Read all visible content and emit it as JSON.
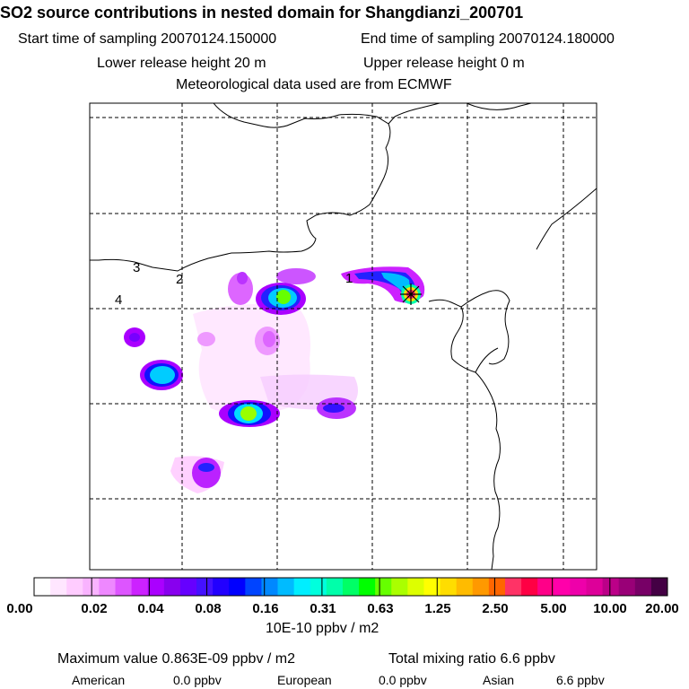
{
  "header": {
    "title": "SO2 source contributions in nested domain for Shangdianzi_200701",
    "start_label": "Start time of sampling 20070124.150000",
    "end_label": "End time of sampling 20070124.180000",
    "lower_label": "Lower release height   20 m",
    "upper_label": "Upper release height    0 m",
    "met_label": "Meteorological data used are from ECMWF"
  },
  "map": {
    "region_labels": [
      "1",
      "2",
      "3",
      "4"
    ],
    "source_marker": "asterisk"
  },
  "colorbar": {
    "colors": [
      "#ffffff",
      "#ffe6ff",
      "#ffccff",
      "#f9b3ff",
      "#ee88ff",
      "#dd55ff",
      "#cc22ff",
      "#aa00ff",
      "#8800ee",
      "#6600ff",
      "#4411ff",
      "#2200ff",
      "#0000ff",
      "#0044ff",
      "#0088ff",
      "#00bbff",
      "#00eeff",
      "#00ffdd",
      "#00ffaa",
      "#00ff66",
      "#00ff00",
      "#66ff00",
      "#aaff00",
      "#ddff00",
      "#ffff00",
      "#ffdd00",
      "#ffbb00",
      "#ff9900",
      "#ff6600",
      "#ff3366",
      "#ff0044",
      "#ff0088",
      "#ff00aa",
      "#ee00aa",
      "#dd0099",
      "#bb0088",
      "#990077",
      "#770066",
      "#440044"
    ],
    "tick_labels": [
      "0.00",
      "0.02",
      "0.04",
      "0.08",
      "0.16",
      "0.31",
      "0.63",
      "1.25",
      "2.50",
      "5.00",
      "10.00",
      "20.00"
    ],
    "unit": "10E-10 ppbv / m2"
  },
  "footer": {
    "max_value": "Maximum value  0.863E-09 ppbv / m2",
    "total_mixing": "Total mixing ratio      6.6 ppbv",
    "american_label": "American",
    "american_value": "0.0 ppbv",
    "european_label": "European",
    "european_value": "0.0 ppbv",
    "asian_label": "Asian",
    "asian_value": "6.6 ppbv"
  }
}
